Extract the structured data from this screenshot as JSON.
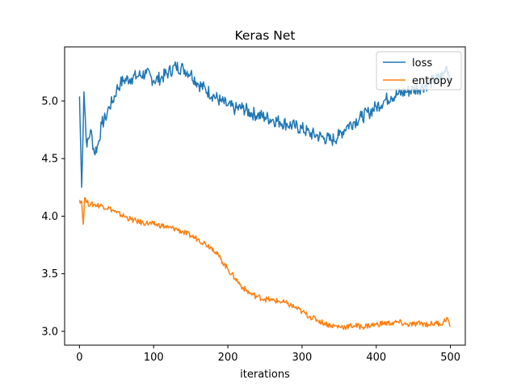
{
  "chart_data": {
    "type": "line",
    "title": "Keras Net",
    "xlabel": "iterations",
    "ylabel": "",
    "xlim": [
      -20,
      520
    ],
    "ylim": [
      2.88,
      5.47
    ],
    "xticks": [
      0,
      100,
      200,
      300,
      400,
      500
    ],
    "yticks": [
      3.0,
      3.5,
      4.0,
      4.5,
      5.0
    ],
    "ytick_labels": [
      "3.0",
      "3.5",
      "4.0",
      "4.5",
      "5.0"
    ],
    "legend_position": "top-right",
    "grid": false,
    "series": [
      {
        "name": "loss",
        "color": "#1f77b4",
        "points": [
          [
            0,
            5.04
          ],
          [
            3,
            4.25
          ],
          [
            6,
            5.08
          ],
          [
            10,
            4.6
          ],
          [
            15,
            4.75
          ],
          [
            20,
            4.55
          ],
          [
            25,
            4.62
          ],
          [
            30,
            4.8
          ],
          [
            35,
            4.85
          ],
          [
            40,
            4.95
          ],
          [
            45,
            5.0
          ],
          [
            50,
            5.1
          ],
          [
            55,
            5.15
          ],
          [
            60,
            5.18
          ],
          [
            70,
            5.2
          ],
          [
            80,
            5.22
          ],
          [
            90,
            5.24
          ],
          [
            100,
            5.18
          ],
          [
            110,
            5.2
          ],
          [
            120,
            5.25
          ],
          [
            130,
            5.3
          ],
          [
            140,
            5.28
          ],
          [
            150,
            5.24
          ],
          [
            160,
            5.15
          ],
          [
            170,
            5.1
          ],
          [
            180,
            5.05
          ],
          [
            190,
            5.0
          ],
          [
            200,
            4.96
          ],
          [
            210,
            4.93
          ],
          [
            220,
            4.94
          ],
          [
            230,
            4.9
          ],
          [
            240,
            4.88
          ],
          [
            250,
            4.86
          ],
          [
            260,
            4.84
          ],
          [
            270,
            4.82
          ],
          [
            280,
            4.8
          ],
          [
            290,
            4.78
          ],
          [
            300,
            4.76
          ],
          [
            310,
            4.72
          ],
          [
            320,
            4.7
          ],
          [
            330,
            4.68
          ],
          [
            340,
            4.66
          ],
          [
            350,
            4.7
          ],
          [
            360,
            4.78
          ],
          [
            370,
            4.82
          ],
          [
            380,
            4.86
          ],
          [
            390,
            4.9
          ],
          [
            400,
            4.95
          ],
          [
            410,
            5.0
          ],
          [
            420,
            5.04
          ],
          [
            430,
            5.06
          ],
          [
            440,
            5.08
          ],
          [
            450,
            5.1
          ],
          [
            460,
            5.12
          ],
          [
            470,
            5.15
          ],
          [
            480,
            5.18
          ],
          [
            490,
            5.22
          ],
          [
            495,
            5.3
          ],
          [
            500,
            5.2
          ]
        ]
      },
      {
        "name": "entropy",
        "color": "#ff7f0e",
        "points": [
          [
            0,
            4.14
          ],
          [
            3,
            4.13
          ],
          [
            5,
            3.93
          ],
          [
            7,
            4.16
          ],
          [
            10,
            4.12
          ],
          [
            15,
            4.1
          ],
          [
            20,
            4.1
          ],
          [
            30,
            4.09
          ],
          [
            40,
            4.07
          ],
          [
            50,
            4.03
          ],
          [
            60,
            4.0
          ],
          [
            70,
            3.97
          ],
          [
            80,
            3.95
          ],
          [
            90,
            3.94
          ],
          [
            100,
            3.93
          ],
          [
            110,
            3.92
          ],
          [
            120,
            3.9
          ],
          [
            130,
            3.89
          ],
          [
            140,
            3.86
          ],
          [
            150,
            3.83
          ],
          [
            160,
            3.8
          ],
          [
            170,
            3.76
          ],
          [
            180,
            3.72
          ],
          [
            190,
            3.63
          ],
          [
            200,
            3.54
          ],
          [
            210,
            3.46
          ],
          [
            220,
            3.38
          ],
          [
            230,
            3.33
          ],
          [
            240,
            3.3
          ],
          [
            250,
            3.28
          ],
          [
            260,
            3.27
          ],
          [
            270,
            3.26
          ],
          [
            280,
            3.24
          ],
          [
            290,
            3.21
          ],
          [
            300,
            3.17
          ],
          [
            310,
            3.13
          ],
          [
            320,
            3.1
          ],
          [
            330,
            3.07
          ],
          [
            340,
            3.05
          ],
          [
            350,
            3.04
          ],
          [
            360,
            3.04
          ],
          [
            370,
            3.05
          ],
          [
            380,
            3.04
          ],
          [
            390,
            3.05
          ],
          [
            400,
            3.06
          ],
          [
            410,
            3.07
          ],
          [
            420,
            3.07
          ],
          [
            430,
            3.08
          ],
          [
            440,
            3.06
          ],
          [
            450,
            3.06
          ],
          [
            460,
            3.07
          ],
          [
            470,
            3.06
          ],
          [
            480,
            3.07
          ],
          [
            490,
            3.07
          ],
          [
            495,
            3.12
          ],
          [
            500,
            3.04
          ]
        ]
      }
    ]
  }
}
